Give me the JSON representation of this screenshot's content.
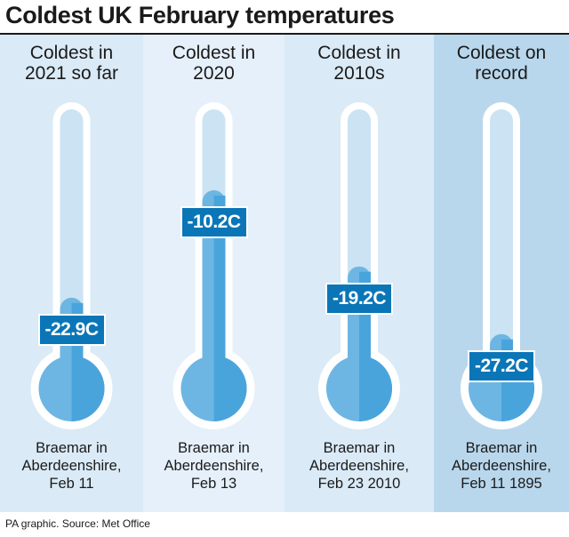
{
  "title": "Coldest UK February temperatures",
  "source": "PA graphic. Source: Met Office",
  "colors": {
    "panel_1": "#daeaf6",
    "panel_2": "#e6f0fa",
    "panel_3": "#daeaf6",
    "panel_4": "#b9d7ec",
    "tube": "#ffffff",
    "tube_inner": "#cbe3f3",
    "mercury": "#6db6e3",
    "mercury_dark": "#4aa4dc",
    "label_bg": "#0a76b7"
  },
  "chart_data": {
    "type": "bar",
    "unit": "C",
    "categories": [
      "Coldest in 2021 so far",
      "Coldest in 2020",
      "Coldest in 2010s",
      "Coldest on record"
    ],
    "values": [
      -22.9,
      -10.2,
      -19.2,
      -27.2
    ],
    "value_labels": [
      "-22.9C",
      "-10.2C",
      "-19.2C",
      "-27.2C"
    ],
    "locations": [
      "Braemar in Aberdeenshire, Feb 11",
      "Braemar in Aberdeenshire, Feb 13",
      "Braemar in Aberdeenshire, Feb 23 2010",
      "Braemar in Aberdeenshire, Feb 11 1895"
    ],
    "ylim": [
      -33,
      0
    ]
  },
  "panels": [
    {
      "heading": [
        "Coldest in",
        "2021 so far"
      ],
      "caption": [
        "Braemar in",
        "Aberdeenshire,",
        "Feb 11"
      ]
    },
    {
      "heading": [
        "Coldest in",
        "2020"
      ],
      "caption": [
        "Braemar in",
        "Aberdeenshire,",
        "Feb 13"
      ]
    },
    {
      "heading": [
        "Coldest in",
        "2010s"
      ],
      "caption": [
        "Braemar in",
        "Aberdeenshire,",
        "Feb 23 2010"
      ]
    },
    {
      "heading": [
        "Coldest on",
        "record"
      ],
      "caption": [
        "Braemar in",
        "Aberdeenshire,",
        "Feb 11 1895"
      ]
    }
  ]
}
